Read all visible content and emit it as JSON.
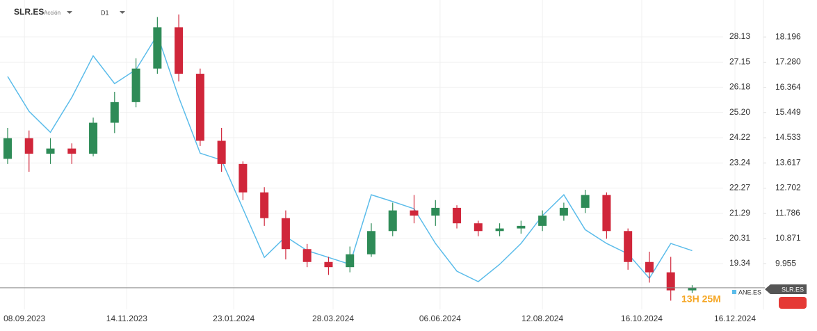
{
  "chart_data": {
    "type": "candlestick",
    "symbol": "SLR.ES",
    "asset_type": "Acción",
    "timeframe": "D1",
    "x": [
      "28.08.2023",
      "11.09.2023",
      "25.09.2023",
      "09.10.2023",
      "23.10.2023",
      "06.11.2023",
      "20.11.2023",
      "04.12.2023",
      "18.12.2023",
      "01.01.2024",
      "15.01.2024",
      "29.01.2024",
      "12.02.2024",
      "26.02.2024",
      "11.03.2024",
      "25.03.2024",
      "08.04.2024",
      "22.04.2024",
      "06.05.2024",
      "20.05.2024",
      "03.06.2024",
      "17.06.2024",
      "01.07.2024",
      "15.07.2024",
      "29.07.2024",
      "12.08.2024",
      "26.08.2024",
      "09.09.2024",
      "23.09.2024",
      "07.10.2024",
      "21.10.2024",
      "04.11.2024",
      "18.11.2024"
    ],
    "open": [
      23.4,
      24.2,
      23.6,
      23.8,
      23.6,
      24.8,
      25.6,
      26.9,
      28.5,
      26.7,
      24.1,
      23.2,
      22.1,
      21.1,
      19.9,
      19.4,
      19.2,
      19.7,
      20.6,
      21.4,
      21.2,
      21.5,
      20.9,
      20.6,
      20.7,
      20.8,
      21.2,
      21.5,
      22.0,
      20.6,
      19.4,
      19.0,
      18.3
    ],
    "high": [
      24.6,
      24.5,
      24.2,
      24.0,
      25.0,
      26.0,
      27.3,
      28.9,
      29.0,
      26.9,
      24.6,
      23.3,
      22.3,
      21.4,
      20.1,
      19.6,
      20.0,
      20.9,
      21.7,
      22.0,
      21.8,
      21.6,
      21.0,
      20.9,
      21.0,
      21.4,
      21.7,
      22.2,
      22.1,
      20.7,
      19.8,
      19.6,
      18.5
    ],
    "low": [
      23.2,
      22.9,
      23.2,
      23.2,
      23.5,
      24.4,
      25.4,
      26.7,
      26.4,
      23.9,
      22.9,
      21.8,
      20.8,
      19.5,
      19.2,
      18.9,
      19.0,
      19.6,
      20.4,
      20.9,
      20.8,
      20.7,
      20.4,
      20.4,
      20.5,
      20.6,
      21.0,
      21.3,
      20.3,
      19.1,
      18.6,
      17.9,
      18.2
    ],
    "close": [
      24.2,
      23.6,
      23.8,
      23.6,
      24.8,
      25.6,
      26.9,
      28.5,
      26.7,
      24.1,
      23.2,
      22.1,
      21.1,
      19.9,
      19.4,
      19.2,
      19.7,
      20.6,
      21.4,
      21.2,
      21.5,
      20.9,
      20.6,
      20.7,
      20.8,
      21.2,
      21.5,
      22.0,
      20.6,
      19.4,
      19.0,
      18.3,
      18.4
    ],
    "up_color": "#2e8b57",
    "down_color": "#d0263a",
    "overlay": {
      "name": "ANE.ES",
      "color": "#5bbcea",
      "axis": "y2",
      "values": [
        16.76,
        15.49,
        14.73,
        16.0,
        17.51,
        16.5,
        17.01,
        18.27,
        16.0,
        13.97,
        13.72,
        11.95,
        10.18,
        10.94,
        10.43,
        10.18,
        9.93,
        12.46,
        12.21,
        11.95,
        10.69,
        9.68,
        9.3,
        9.93,
        10.69,
        11.7,
        12.46,
        11.19,
        10.69,
        10.31,
        9.42,
        10.69,
        10.43
      ]
    },
    "xlim": [
      "23.08.2023",
      "16.12.2024"
    ],
    "xticks": [
      "08.09.2023",
      "14.11.2023",
      "23.01.2024",
      "28.03.2024",
      "06.06.2024",
      "12.08.2024",
      "16.10.2024",
      "16.12.2024"
    ],
    "ylim": [
      17.56,
      29.56
    ],
    "yticks": [
      28.13,
      27.15,
      26.18,
      {
        "value": 25.2,
        "label": "25.20"
      },
      24.22,
      23.24,
      22.27,
      21.29,
      20.31,
      19.34
    ],
    "y2lim": [
      8.29,
      19.54
    ],
    "y2ticks": [
      18.196,
      {
        "value": 17.28,
        "label": "17.280"
      },
      16.364,
      15.449,
      14.533,
      13.617,
      12.702,
      11.786,
      10.871,
      9.955
    ],
    "grid": true,
    "countdown": "13H 25M"
  }
}
